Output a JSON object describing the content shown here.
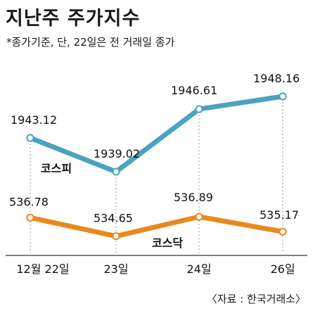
{
  "header": {
    "title": "지난주 주가지수",
    "subtitle": "*종가기준, 단, 22일은 전 거래일 종가"
  },
  "footer": {
    "source": "〈자료 : 한국거래소〉"
  },
  "chart_data": {
    "type": "line",
    "categories": [
      "12월 22일",
      "23일",
      "24일",
      "26일"
    ],
    "series": [
      {
        "name": "코스피",
        "values": [
          1943.12,
          1939.02,
          1946.61,
          1948.16
        ],
        "labels": [
          "1943.12",
          "1939.02",
          "1946.61",
          "1948.16"
        ],
        "color": "#4aa3bf"
      },
      {
        "name": "코스닥",
        "values": [
          536.78,
          534.65,
          536.89,
          535.17
        ],
        "labels": [
          "536.78",
          "534.65",
          "536.89",
          "535.17"
        ],
        "color": "#e8891e"
      }
    ],
    "grid": "vertical dotted",
    "legend": "inline labels"
  }
}
